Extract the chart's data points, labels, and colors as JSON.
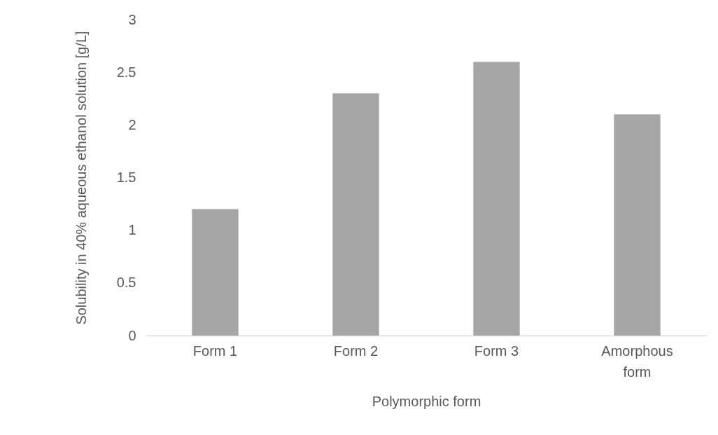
{
  "chart_data": {
    "type": "bar",
    "xlabel": "Polymorphic form",
    "ylabel": "Solubility in 40% aqueous ethanol solution [g/L]",
    "categories": [
      "Form 1",
      "Form 2",
      "Form 3",
      "Amorphous form"
    ],
    "values": [
      1.2,
      2.3,
      2.6,
      2.1
    ],
    "color": "#a6a6a6",
    "ylim": [
      0,
      3
    ],
    "yticks": [
      0,
      0.5,
      1,
      1.5,
      2,
      2.5,
      3
    ],
    "grid": false
  }
}
